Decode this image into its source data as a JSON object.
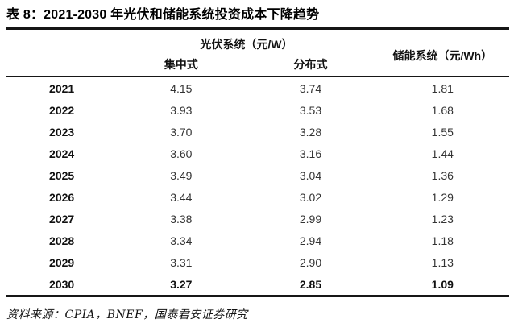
{
  "table": {
    "title": "表 8：2021-2030 年光伏和储能系统投资成本下降趋势",
    "header": {
      "pv_group": "光伏系统（元/W）",
      "storage": "储能系统（元/Wh）",
      "centralized": "集中式",
      "distributed": "分布式"
    },
    "rows": [
      {
        "year": "2021",
        "centralized": "4.15",
        "distributed": "3.74",
        "storage": "1.81",
        "bold": false
      },
      {
        "year": "2022",
        "centralized": "3.93",
        "distributed": "3.53",
        "storage": "1.68",
        "bold": false
      },
      {
        "year": "2023",
        "centralized": "3.70",
        "distributed": "3.28",
        "storage": "1.55",
        "bold": false
      },
      {
        "year": "2024",
        "centralized": "3.60",
        "distributed": "3.16",
        "storage": "1.44",
        "bold": false
      },
      {
        "year": "2025",
        "centralized": "3.49",
        "distributed": "3.04",
        "storage": "1.36",
        "bold": false
      },
      {
        "year": "2026",
        "centralized": "3.44",
        "distributed": "3.02",
        "storage": "1.29",
        "bold": false
      },
      {
        "year": "2027",
        "centralized": "3.38",
        "distributed": "2.99",
        "storage": "1.23",
        "bold": false
      },
      {
        "year": "2028",
        "centralized": "3.34",
        "distributed": "2.94",
        "storage": "1.18",
        "bold": false
      },
      {
        "year": "2029",
        "centralized": "3.31",
        "distributed": "2.90",
        "storage": "1.13",
        "bold": false
      },
      {
        "year": "2030",
        "centralized": "3.27",
        "distributed": "2.85",
        "storage": "1.09",
        "bold": true
      }
    ],
    "source": "资料来源：CPIA，BNEF，国泰君安证券研究"
  },
  "colors": {
    "rule": "#161616",
    "title_text": "#000000",
    "value_text": "#333333",
    "year_text": "#111111"
  },
  "chart_data": {
    "type": "table",
    "title": "表 8：2021-2030 年光伏和储能系统投资成本下降趋势",
    "categories": [
      "2021",
      "2022",
      "2023",
      "2024",
      "2025",
      "2026",
      "2027",
      "2028",
      "2029",
      "2030"
    ],
    "series": [
      {
        "name": "光伏系统 集中式 (元/W)",
        "values": [
          4.15,
          3.93,
          3.7,
          3.6,
          3.49,
          3.44,
          3.38,
          3.34,
          3.31,
          3.27
        ]
      },
      {
        "name": "光伏系统 分布式 (元/W)",
        "values": [
          3.74,
          3.53,
          3.28,
          3.16,
          3.04,
          3.02,
          2.99,
          2.94,
          2.9,
          2.85
        ]
      },
      {
        "name": "储能系统 (元/Wh)",
        "values": [
          1.81,
          1.68,
          1.55,
          1.44,
          1.36,
          1.29,
          1.23,
          1.18,
          1.13,
          1.09
        ]
      }
    ],
    "source": "资料来源：CPIA，BNEF，国泰君安证券研究"
  }
}
